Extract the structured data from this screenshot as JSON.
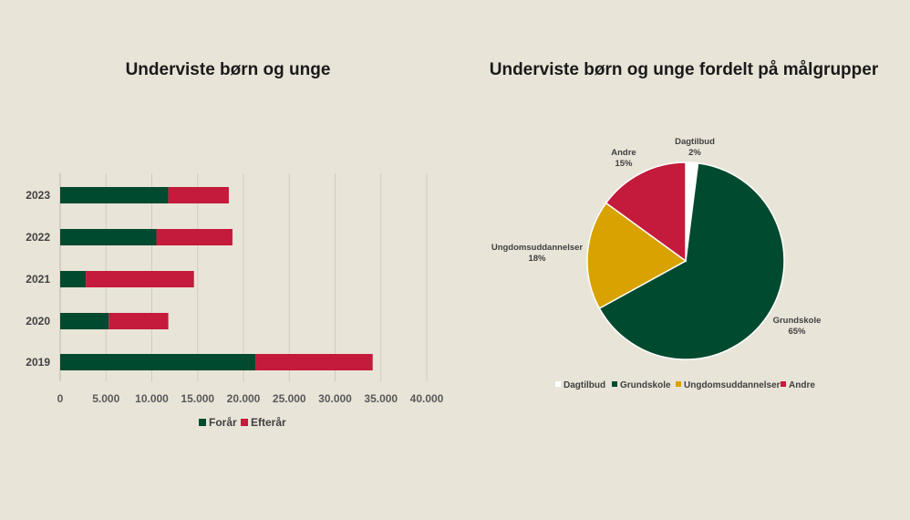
{
  "colors": {
    "background": "#e8e4d8",
    "forar": "#004a2f",
    "efterar": "#c41a3b",
    "dagtilbud": "#ffffff",
    "grundskole": "#004a2f",
    "ungdomsuddannelser": "#d8a200",
    "andre": "#c41a3b"
  },
  "chart_data": [
    {
      "type": "bar",
      "orientation": "horizontal",
      "stacked": true,
      "title": "Underviste børn og unge",
      "categories": [
        "2023",
        "2022",
        "2021",
        "2020",
        "2019"
      ],
      "series": [
        {
          "name": "Forår",
          "values": [
            11800,
            10500,
            2800,
            5300,
            21300
          ]
        },
        {
          "name": "Efterår",
          "values": [
            6600,
            8300,
            11800,
            6500,
            12800
          ]
        }
      ],
      "xlim": [
        0,
        40000
      ],
      "xticks": [
        0,
        5000,
        10000,
        15000,
        20000,
        25000,
        30000,
        35000,
        40000
      ],
      "xtick_labels": [
        "0",
        "5.000",
        "10.000",
        "15.000",
        "20.000",
        "25.000",
        "30.000",
        "35.000",
        "40.000"
      ],
      "grid": true,
      "legend": "bottom"
    },
    {
      "type": "pie",
      "title": "Underviste børn og unge fordelt på målgrupper",
      "slices": [
        {
          "name": "Dagtilbud",
          "value": 2,
          "label": "2%"
        },
        {
          "name": "Grundskole",
          "value": 65,
          "label": "65%"
        },
        {
          "name": "Ungdomsuddannelser",
          "value": 18,
          "label": "18%"
        },
        {
          "name": "Andre",
          "value": 15,
          "label": "15%"
        }
      ],
      "legend": "bottom"
    }
  ]
}
